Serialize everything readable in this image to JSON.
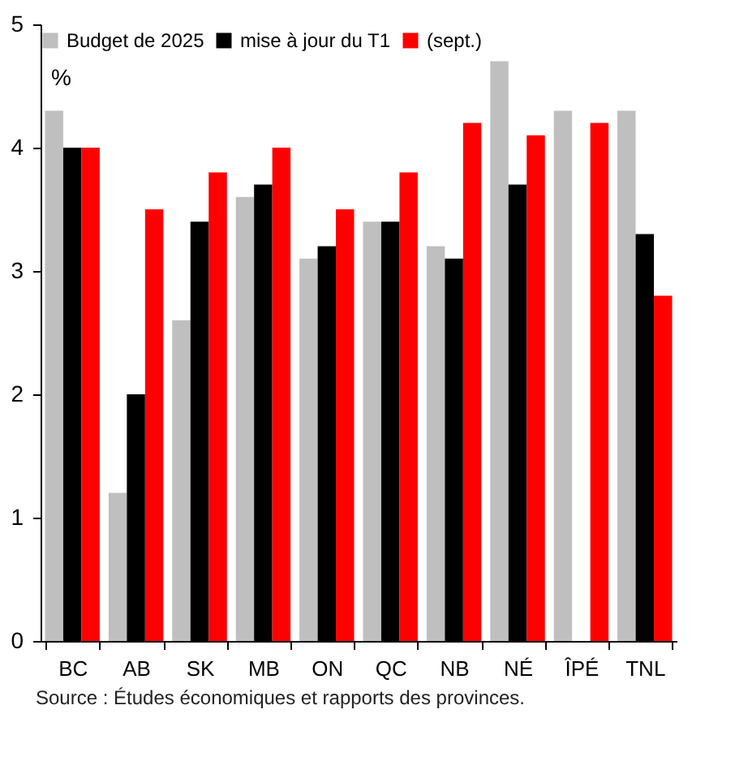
{
  "chart_data": {
    "type": "bar",
    "ylabel": "%",
    "categories": [
      "BC",
      "AB",
      "SK",
      "MB",
      "ON",
      "QC",
      "NB",
      "NÉ",
      "ÎPÉ",
      "TNL"
    ],
    "series": [
      {
        "name": "Budget de 2025",
        "color": "#bfbfbf",
        "values": [
          4.3,
          1.2,
          2.6,
          3.6,
          3.1,
          3.4,
          3.2,
          4.7,
          4.3,
          4.3
        ]
      },
      {
        "name": "mise à jour du T1",
        "color": "#000000",
        "values": [
          4.0,
          2.0,
          3.4,
          3.7,
          3.2,
          3.4,
          3.1,
          3.7,
          null,
          3.3
        ]
      },
      {
        "name": "(sept.)",
        "color": "#ff0000",
        "values": [
          4.0,
          3.5,
          3.8,
          4.0,
          3.5,
          3.8,
          4.2,
          4.1,
          4.2,
          2.8
        ]
      }
    ],
    "ylim": [
      0,
      5
    ],
    "yticks": [
      0,
      1,
      2,
      3,
      4,
      5
    ],
    "grid": false,
    "legend": "top",
    "annotations": [
      "Source : Études économiques et rapports des provinces."
    ]
  }
}
